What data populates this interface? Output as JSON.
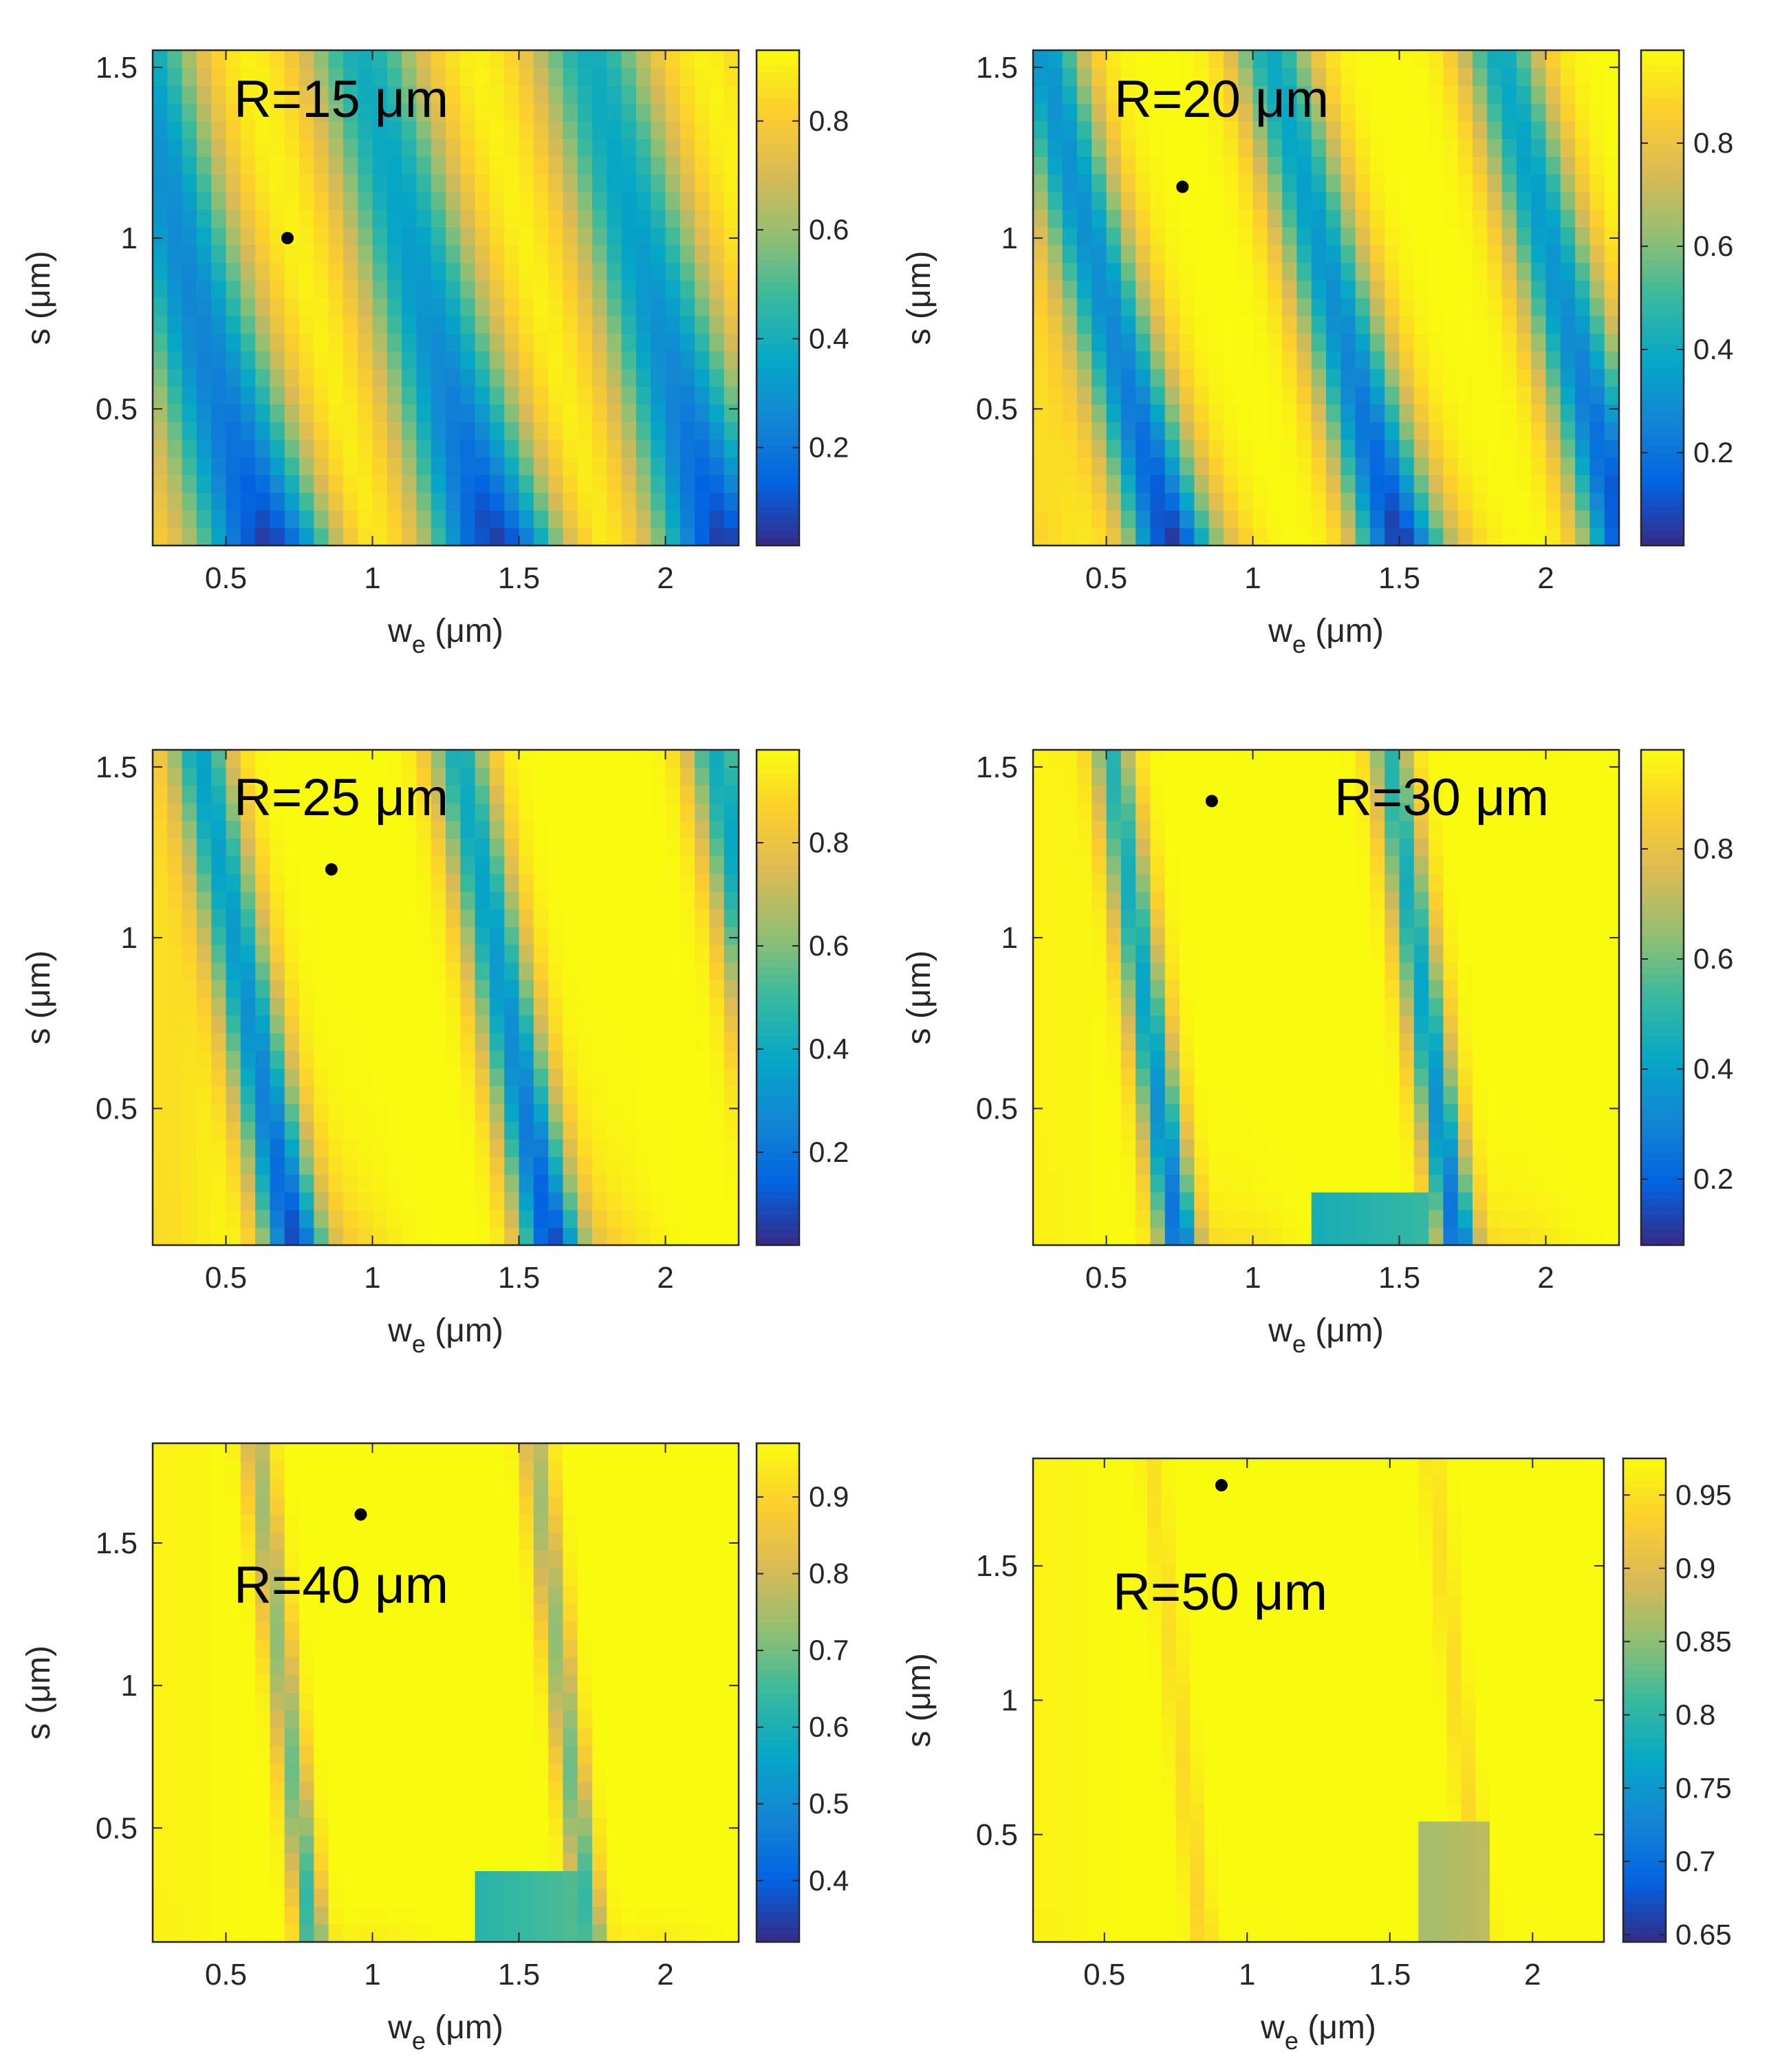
{
  "figure": {
    "colormap": "parula",
    "colormap_stops": [
      "#352a87",
      "#0363e1",
      "#1485d4",
      "#06a7c6",
      "#38b99e",
      "#92bf73",
      "#d9ba56",
      "#fcce2e",
      "#f9fb0e"
    ]
  },
  "chart_data": [
    {
      "type": "heatmap",
      "title": "R=15 μm",
      "xlabel": "w_e (μm)",
      "ylabel": "s (μm)",
      "xlim": [
        0.25,
        2.25
      ],
      "ylim": [
        0.1,
        1.55
      ],
      "xticks": [
        0.5,
        1,
        1.5,
        2
      ],
      "xtick_labels": [
        "0.5",
        "1",
        "1.5",
        "2"
      ],
      "yticks": [
        0.5,
        1,
        1.5
      ],
      "ytick_labels": [
        "0.5",
        "1",
        "1.5"
      ],
      "clim": [
        0.02,
        0.93
      ],
      "colorbar_ticks": [
        0.2,
        0.4,
        0.6,
        0.8
      ],
      "colorbar_labels": [
        "0.2",
        "0.4",
        "0.6",
        "0.8"
      ],
      "marker": {
        "x": 0.71,
        "y": 1.0
      },
      "field": {
        "period": 0.78,
        "dip_w0": 0.6,
        "dip_slope": -0.3,
        "dip_depth": 0.92,
        "dip_width": 0.15,
        "floor": 0.02,
        "ceil": 0.93,
        "bowl": 0.55,
        "shallow_s": 0.35,
        "plateau": null
      }
    },
    {
      "type": "heatmap",
      "title": "R=20 μm",
      "xlabel": "w_e (μm)",
      "ylabel": "s (μm)",
      "xlim": [
        0.25,
        2.25
      ],
      "ylim": [
        0.1,
        1.55
      ],
      "xticks": [
        0.5,
        1,
        1.5,
        2
      ],
      "xtick_labels": [
        "0.5",
        "1",
        "1.5",
        "2"
      ],
      "yticks": [
        0.5,
        1,
        1.5
      ],
      "ytick_labels": [
        "0.5",
        "1",
        "1.5"
      ],
      "clim": [
        0.02,
        0.98
      ],
      "colorbar_ticks": [
        0.2,
        0.4,
        0.6,
        0.8
      ],
      "colorbar_labels": [
        "0.2",
        "0.4",
        "0.6",
        "0.8"
      ],
      "marker": {
        "x": 0.76,
        "y": 1.15
      },
      "field": {
        "period": 0.78,
        "dip_w0": 0.7,
        "dip_slope": -0.3,
        "dip_depth": 0.95,
        "dip_width": 0.1,
        "floor": 0.02,
        "ceil": 0.98,
        "bowl": 0.45,
        "shallow_s": 0.3,
        "plateau": null
      }
    },
    {
      "type": "heatmap",
      "title": "R=25 μm",
      "xlabel": "w_e (μm)",
      "ylabel": "s (μm)",
      "xlim": [
        0.25,
        2.25
      ],
      "ylim": [
        0.1,
        1.55
      ],
      "xticks": [
        0.5,
        1,
        1.5,
        2
      ],
      "xtick_labels": [
        "0.5",
        "1",
        "1.5",
        "2"
      ],
      "yticks": [
        0.5,
        1,
        1.5
      ],
      "ytick_labels": [
        "0.5",
        "1",
        "1.5"
      ],
      "clim": [
        0.02,
        0.98
      ],
      "colorbar_ticks": [
        0.2,
        0.4,
        0.6,
        0.8
      ],
      "colorbar_labels": [
        "0.2",
        "0.4",
        "0.6",
        "0.8"
      ],
      "marker": {
        "x": 0.86,
        "y": 1.2
      },
      "field": {
        "period": 0.88,
        "dip_w0": 0.72,
        "dip_slope": -0.22,
        "dip_depth": 0.93,
        "dip_width": 0.075,
        "floor": 0.02,
        "ceil": 0.98,
        "bowl": 0.35,
        "shallow_s": 0.22,
        "plateau": null
      }
    },
    {
      "type": "heatmap",
      "title": "R=30 μm",
      "xlabel": "w_e (μm)",
      "ylabel": "s (μm)",
      "xlim": [
        0.25,
        2.25
      ],
      "ylim": [
        0.1,
        1.55
      ],
      "xticks": [
        0.5,
        1,
        1.5,
        2
      ],
      "xtick_labels": [
        "0.5",
        "1",
        "1.5",
        "2"
      ],
      "yticks": [
        0.5,
        1,
        1.5
      ],
      "ytick_labels": [
        "0.5",
        "1",
        "1.5"
      ],
      "clim": [
        0.08,
        0.98
      ],
      "colorbar_ticks": [
        0.2,
        0.4,
        0.6,
        0.8
      ],
      "colorbar_labels": [
        "0.2",
        "0.4",
        "0.6",
        "0.8"
      ],
      "marker": {
        "x": 0.86,
        "y": 1.4
      },
      "field": {
        "period": 0.95,
        "dip_w0": 0.74,
        "dip_slope": -0.16,
        "dip_depth": 0.85,
        "dip_width": 0.05,
        "floor": 0.08,
        "ceil": 0.98,
        "bowl": 0.25,
        "shallow_s": 0.12,
        "plateau": {
          "x0": 1.18,
          "x1": 1.62,
          "y1": 0.28,
          "v": 0.45
        }
      }
    },
    {
      "type": "heatmap",
      "title": "R=40 μm",
      "xlabel": "w_e (μm)",
      "ylabel": "s (μm)",
      "xlim": [
        0.25,
        2.25
      ],
      "ylim": [
        0.1,
        1.85
      ],
      "xticks": [
        0.5,
        1,
        1.5,
        2
      ],
      "xtick_labels": [
        "0.5",
        "1",
        "1.5",
        "2"
      ],
      "yticks": [
        0.5,
        1,
        1.5
      ],
      "ytick_labels": [
        "0.5",
        "1",
        "1.5"
      ],
      "clim": [
        0.32,
        0.97
      ],
      "colorbar_ticks": [
        0.4,
        0.5,
        0.6,
        0.7,
        0.8,
        0.9
      ],
      "colorbar_labels": [
        "0.4",
        "0.5",
        "0.6",
        "0.7",
        "0.8",
        "0.9"
      ],
      "marker": {
        "x": 0.96,
        "y": 1.6
      },
      "field": {
        "period": 0.95,
        "dip_w0": 0.79,
        "dip_slope": -0.11,
        "dip_depth": 0.55,
        "dip_width": 0.035,
        "floor": 0.32,
        "ceil": 0.97,
        "bowl": 0.15,
        "shallow_s": 0.06,
        "plateau": {
          "x0": 1.37,
          "x1": 1.72,
          "y1": 0.38,
          "v": 0.62
        }
      }
    },
    {
      "type": "heatmap",
      "title": "R=50 μm",
      "xlabel": "w_e (μm)",
      "ylabel": "s (μm)",
      "xlim": [
        0.25,
        2.25
      ],
      "ylim": [
        0.1,
        1.9
      ],
      "xticks": [
        0.5,
        1,
        1.5,
        2
      ],
      "xtick_labels": [
        "0.5",
        "1",
        "1.5",
        "2"
      ],
      "yticks": [
        0.5,
        1,
        1.5
      ],
      "ytick_labels": [
        "0.5",
        "1",
        "1.5"
      ],
      "clim": [
        0.645,
        0.975
      ],
      "colorbar_ticks": [
        0.65,
        0.7,
        0.75,
        0.8,
        0.85,
        0.9,
        0.95
      ],
      "colorbar_labels": [
        "0.65",
        "0.7",
        "0.75",
        "0.8",
        "0.85",
        "0.9",
        "0.95"
      ],
      "marker": {
        "x": 0.91,
        "y": 1.8
      },
      "field": {
        "period": 0.98,
        "dip_w0": 0.84,
        "dip_slope": -0.1,
        "dip_depth": 0.12,
        "dip_width": 0.03,
        "floor": 0.645,
        "ceil": 0.975,
        "bowl": 0.05,
        "shallow_s": 0.05,
        "plateau": {
          "x0": 1.58,
          "x1": 1.85,
          "y1": 0.55,
          "v": 0.86
        }
      }
    }
  ]
}
